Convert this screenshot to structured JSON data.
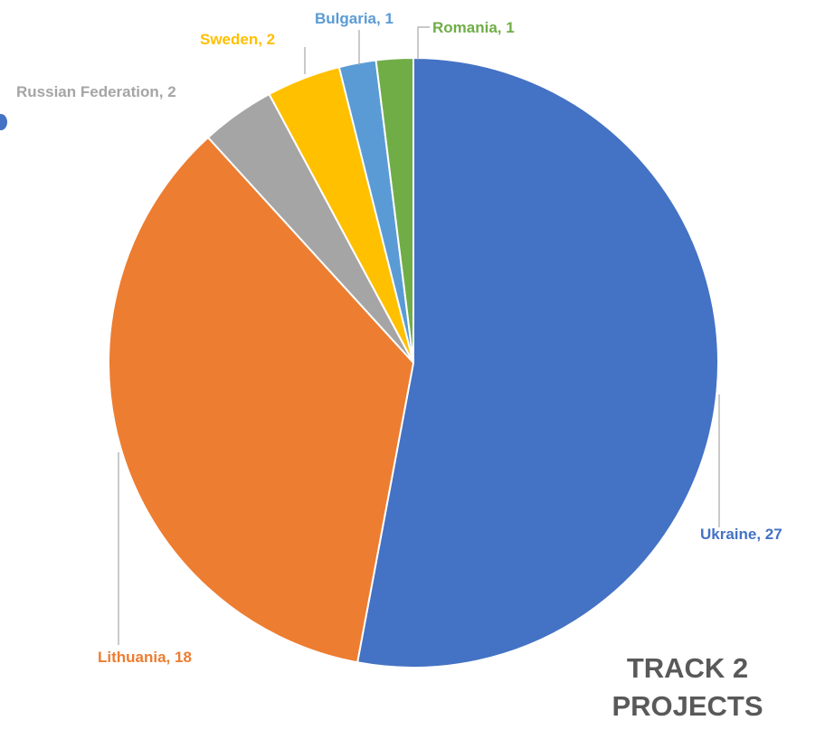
{
  "chart_data": {
    "type": "pie",
    "title_lines": [
      "TRACK 2",
      "PROJECTS"
    ],
    "slices": [
      {
        "label": "Ukraine",
        "value": 27,
        "color": "#4472C4",
        "label_color": "#4472C4",
        "text": "Ukraine, 27"
      },
      {
        "label": "Lithuania",
        "value": 18,
        "color": "#ED7D31",
        "label_color": "#ED7D31",
        "text": "Lithuania, 18"
      },
      {
        "label": "Russian Federation",
        "value": 2,
        "color": "#A5A5A5",
        "label_color": "#A5A5A5",
        "text": "Russian Federation, 2"
      },
      {
        "label": "Sweden",
        "value": 2,
        "color": "#FFC000",
        "label_color": "#FFC000",
        "text": "Sweden, 2"
      },
      {
        "label": "Bulgaria",
        "value": 1,
        "color": "#5B9BD5",
        "label_color": "#5B9BD5",
        "text": "Bulgaria, 1"
      },
      {
        "label": "Romania",
        "value": 1,
        "color": "#70AD47",
        "label_color": "#70AD47",
        "text": "Romania, 1"
      }
    ],
    "start_angle_deg": 0,
    "direction": "clockwise",
    "data_labels": "outside-with-leader-lines",
    "legend": "none"
  }
}
